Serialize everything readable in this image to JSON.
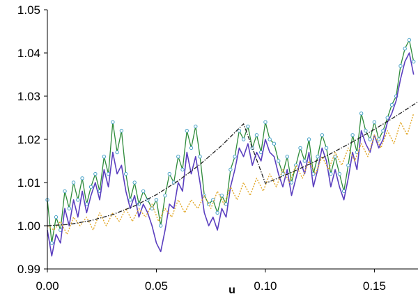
{
  "chart_data": {
    "type": "line",
    "title": "",
    "xlabel": "u",
    "ylabel": "",
    "xlim": [
      0,
      0.17
    ],
    "ylim": [
      0.99,
      1.05
    ],
    "x_ticks": [
      "0.00",
      "0.05",
      "0.10",
      "0.15"
    ],
    "x_tick_values": [
      0,
      0.05,
      0.1,
      0.15
    ],
    "y_ticks": [
      "0.99",
      "1.00",
      "1.01",
      "1.02",
      "1.03",
      "1.04",
      "1.05"
    ],
    "y_tick_values": [
      0.99,
      1.0,
      1.01,
      1.02,
      1.03,
      1.04,
      1.05
    ],
    "grid": false,
    "legend": "none",
    "series": [
      {
        "style": "solid-markers",
        "color": "#2e8b3a",
        "marker_color": "#4aa3c8",
        "points": [
          [
            0.0,
            1.006
          ],
          [
            0.002,
            0.996
          ],
          [
            0.004,
            1.002
          ],
          [
            0.006,
            0.999
          ],
          [
            0.008,
            1.008
          ],
          [
            0.01,
            1.004
          ],
          [
            0.012,
            1.01
          ],
          [
            0.014,
            1.006
          ],
          [
            0.016,
            1.011
          ],
          [
            0.018,
            1.005
          ],
          [
            0.02,
            1.009
          ],
          [
            0.022,
            1.012
          ],
          [
            0.024,
            1.008
          ],
          [
            0.026,
            1.016
          ],
          [
            0.028,
            1.012
          ],
          [
            0.03,
            1.024
          ],
          [
            0.032,
            1.017
          ],
          [
            0.034,
            1.022
          ],
          [
            0.036,
            1.012
          ],
          [
            0.038,
            1.006
          ],
          [
            0.04,
            1.01
          ],
          [
            0.042,
            1.005
          ],
          [
            0.044,
            1.008
          ],
          [
            0.046,
            1.006
          ],
          [
            0.048,
            1.004
          ],
          [
            0.05,
            1.006
          ],
          [
            0.052,
            1.0
          ],
          [
            0.054,
            1.007
          ],
          [
            0.056,
            1.012
          ],
          [
            0.058,
            1.01
          ],
          [
            0.06,
            1.016
          ],
          [
            0.062,
            1.013
          ],
          [
            0.064,
            1.022
          ],
          [
            0.066,
            1.018
          ],
          [
            0.068,
            1.023
          ],
          [
            0.07,
            1.016
          ],
          [
            0.072,
            1.007
          ],
          [
            0.074,
            1.005
          ],
          [
            0.076,
            1.006
          ],
          [
            0.078,
            1.003
          ],
          [
            0.08,
            1.007
          ],
          [
            0.082,
            1.005
          ],
          [
            0.084,
            1.013
          ],
          [
            0.086,
            1.016
          ],
          [
            0.088,
            1.022
          ],
          [
            0.09,
            1.02
          ],
          [
            0.092,
            1.023
          ],
          [
            0.094,
            1.018
          ],
          [
            0.096,
            1.021
          ],
          [
            0.098,
            1.017
          ],
          [
            0.1,
            1.024
          ],
          [
            0.102,
            1.02
          ],
          [
            0.104,
            1.019
          ],
          [
            0.106,
            1.015
          ],
          [
            0.108,
            1.012
          ],
          [
            0.11,
            1.016
          ],
          [
            0.112,
            1.01
          ],
          [
            0.114,
            1.014
          ],
          [
            0.116,
            1.018
          ],
          [
            0.118,
            1.015
          ],
          [
            0.12,
            1.02
          ],
          [
            0.122,
            1.012
          ],
          [
            0.124,
            1.016
          ],
          [
            0.126,
            1.021
          ],
          [
            0.128,
            1.018
          ],
          [
            0.13,
            1.012
          ],
          [
            0.132,
            1.016
          ],
          [
            0.134,
            1.012
          ],
          [
            0.136,
            1.008
          ],
          [
            0.138,
            1.014
          ],
          [
            0.14,
            1.021
          ],
          [
            0.142,
            1.017
          ],
          [
            0.144,
            1.026
          ],
          [
            0.146,
            1.022
          ],
          [
            0.148,
            1.02
          ],
          [
            0.15,
            1.024
          ],
          [
            0.152,
            1.02
          ],
          [
            0.154,
            1.022
          ],
          [
            0.156,
            1.025
          ],
          [
            0.158,
            1.028
          ],
          [
            0.16,
            1.03
          ],
          [
            0.162,
            1.037
          ],
          [
            0.164,
            1.041
          ],
          [
            0.166,
            1.043
          ],
          [
            0.168,
            1.038
          ]
        ]
      },
      {
        "style": "solid",
        "color": "#5b3fbf",
        "points": [
          [
            0.0,
            0.999
          ],
          [
            0.002,
            0.993
          ],
          [
            0.004,
            0.998
          ],
          [
            0.006,
            0.996
          ],
          [
            0.008,
            1.004
          ],
          [
            0.01,
            1.0
          ],
          [
            0.012,
            1.006
          ],
          [
            0.014,
            1.002
          ],
          [
            0.016,
            1.008
          ],
          [
            0.018,
            1.003
          ],
          [
            0.02,
            1.007
          ],
          [
            0.022,
            1.01
          ],
          [
            0.024,
            1.006
          ],
          [
            0.026,
            1.013
          ],
          [
            0.028,
            1.009
          ],
          [
            0.03,
            1.017
          ],
          [
            0.032,
            1.012
          ],
          [
            0.034,
            1.014
          ],
          [
            0.036,
            1.008
          ],
          [
            0.038,
            1.004
          ],
          [
            0.04,
            1.007
          ],
          [
            0.042,
            1.002
          ],
          [
            0.044,
            1.005
          ],
          [
            0.046,
            1.003
          ],
          [
            0.048,
            1.0
          ],
          [
            0.05,
            0.996
          ],
          [
            0.052,
            0.994
          ],
          [
            0.054,
            0.999
          ],
          [
            0.056,
            1.005
          ],
          [
            0.058,
            1.004
          ],
          [
            0.06,
            1.01
          ],
          [
            0.062,
            1.008
          ],
          [
            0.064,
            1.017
          ],
          [
            0.066,
            1.012
          ],
          [
            0.068,
            1.016
          ],
          [
            0.07,
            1.01
          ],
          [
            0.072,
            1.003
          ],
          [
            0.074,
            1.0
          ],
          [
            0.076,
            1.002
          ],
          [
            0.078,
            0.999
          ],
          [
            0.08,
            1.004
          ],
          [
            0.082,
            1.002
          ],
          [
            0.084,
            1.009
          ],
          [
            0.086,
            1.013
          ],
          [
            0.088,
            1.018
          ],
          [
            0.09,
            1.016
          ],
          [
            0.092,
            1.019
          ],
          [
            0.094,
            1.014
          ],
          [
            0.096,
            1.017
          ],
          [
            0.098,
            1.015
          ],
          [
            0.1,
            1.02
          ],
          [
            0.102,
            1.017
          ],
          [
            0.104,
            1.016
          ],
          [
            0.106,
            1.012
          ],
          [
            0.108,
            1.009
          ],
          [
            0.11,
            1.013
          ],
          [
            0.112,
            1.007
          ],
          [
            0.114,
            1.011
          ],
          [
            0.116,
            1.015
          ],
          [
            0.118,
            1.012
          ],
          [
            0.12,
            1.017
          ],
          [
            0.122,
            1.009
          ],
          [
            0.124,
            1.013
          ],
          [
            0.126,
            1.018
          ],
          [
            0.128,
            1.015
          ],
          [
            0.13,
            1.009
          ],
          [
            0.132,
            1.013
          ],
          [
            0.134,
            1.009
          ],
          [
            0.136,
            1.006
          ],
          [
            0.138,
            1.011
          ],
          [
            0.14,
            1.017
          ],
          [
            0.142,
            1.013
          ],
          [
            0.144,
            1.022
          ],
          [
            0.146,
            1.019
          ],
          [
            0.148,
            1.017
          ],
          [
            0.15,
            1.021
          ],
          [
            0.152,
            1.018
          ],
          [
            0.154,
            1.02
          ],
          [
            0.156,
            1.024
          ],
          [
            0.158,
            1.026
          ],
          [
            0.16,
            1.029
          ],
          [
            0.162,
            1.034
          ],
          [
            0.164,
            1.038
          ],
          [
            0.166,
            1.04
          ],
          [
            0.168,
            1.035
          ]
        ]
      },
      {
        "style": "dotted",
        "color": "#e2a82a",
        "points": [
          [
            0.0,
            1.0
          ],
          [
            0.003,
            0.999
          ],
          [
            0.006,
            1.001
          ],
          [
            0.009,
            0.998
          ],
          [
            0.012,
            1.002
          ],
          [
            0.015,
            1.0
          ],
          [
            0.018,
            1.002
          ],
          [
            0.021,
            0.999
          ],
          [
            0.024,
            1.003
          ],
          [
            0.027,
            1.0
          ],
          [
            0.03,
            1.003
          ],
          [
            0.033,
            1.001
          ],
          [
            0.036,
            1.004
          ],
          [
            0.039,
            1.001
          ],
          [
            0.042,
            1.004
          ],
          [
            0.045,
            1.002
          ],
          [
            0.048,
            1.005
          ],
          [
            0.051,
            1.001
          ],
          [
            0.054,
            1.004
          ],
          [
            0.057,
            1.002
          ],
          [
            0.06,
            1.006
          ],
          [
            0.063,
            1.003
          ],
          [
            0.066,
            1.006
          ],
          [
            0.069,
            1.004
          ],
          [
            0.072,
            1.007
          ],
          [
            0.075,
            1.004
          ],
          [
            0.078,
            1.008
          ],
          [
            0.081,
            1.005
          ],
          [
            0.084,
            1.009
          ],
          [
            0.087,
            1.006
          ],
          [
            0.09,
            1.01
          ],
          [
            0.093,
            1.007
          ],
          [
            0.096,
            1.011
          ],
          [
            0.099,
            1.008
          ],
          [
            0.102,
            1.012
          ],
          [
            0.105,
            1.009
          ],
          [
            0.108,
            1.013
          ],
          [
            0.111,
            1.01
          ],
          [
            0.114,
            1.014
          ],
          [
            0.117,
            1.011
          ],
          [
            0.12,
            1.015
          ],
          [
            0.123,
            1.012
          ],
          [
            0.126,
            1.016
          ],
          [
            0.129,
            1.013
          ],
          [
            0.132,
            1.017
          ],
          [
            0.135,
            1.014
          ],
          [
            0.138,
            1.018
          ],
          [
            0.141,
            1.015
          ],
          [
            0.144,
            1.019
          ],
          [
            0.147,
            1.016
          ],
          [
            0.15,
            1.021
          ],
          [
            0.153,
            1.018
          ],
          [
            0.156,
            1.022
          ],
          [
            0.159,
            1.019
          ],
          [
            0.162,
            1.024
          ],
          [
            0.165,
            1.021
          ],
          [
            0.168,
            1.026
          ]
        ]
      },
      {
        "style": "dash-dot",
        "color": "#222222",
        "points": [
          [
            0.0,
            1.0
          ],
          [
            0.01,
            1.0003
          ],
          [
            0.02,
            1.0012
          ],
          [
            0.03,
            1.0026
          ],
          [
            0.04,
            1.0046
          ],
          [
            0.05,
            1.0072
          ],
          [
            0.06,
            1.0104
          ],
          [
            0.07,
            1.0142
          ],
          [
            0.08,
            1.0186
          ],
          [
            0.09,
            1.0236
          ],
          [
            0.1,
            1.0098
          ],
          [
            0.11,
            1.0119
          ],
          [
            0.12,
            1.0142
          ],
          [
            0.13,
            1.0167
          ],
          [
            0.14,
            1.0194
          ],
          [
            0.15,
            1.0223
          ],
          [
            0.16,
            1.0254
          ],
          [
            0.17,
            1.0287
          ]
        ]
      }
    ]
  }
}
